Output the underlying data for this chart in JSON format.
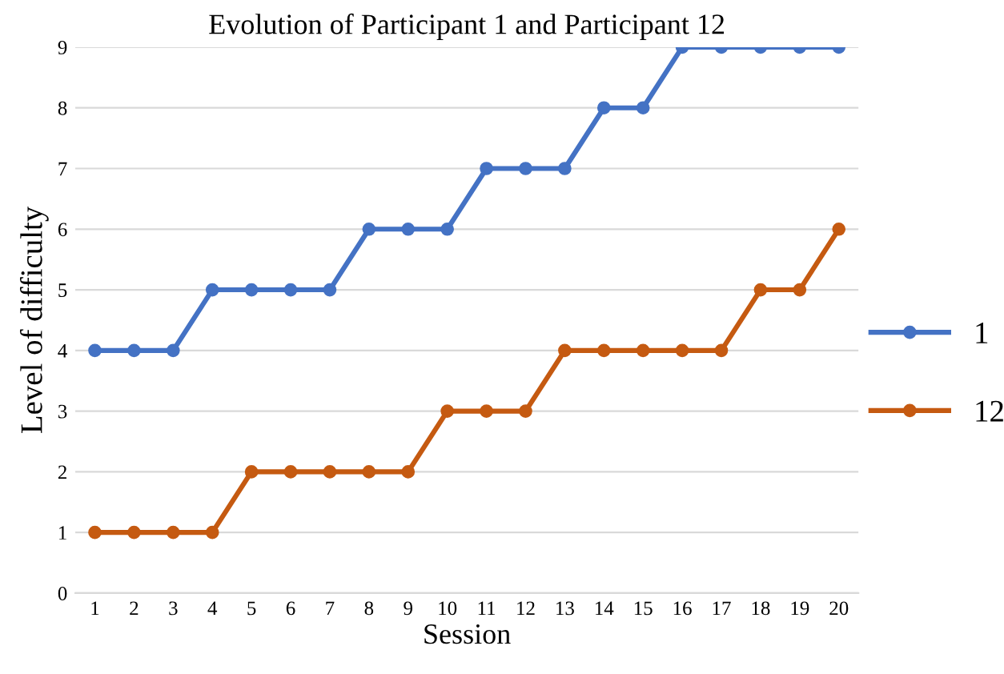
{
  "chart_data": {
    "type": "line",
    "title": "Evolution of Participant 1 and Participant 12",
    "xlabel": "Session",
    "ylabel": "Level of difficulty",
    "categories": [
      "1",
      "2",
      "3",
      "4",
      "5",
      "6",
      "7",
      "8",
      "9",
      "10",
      "11",
      "12",
      "13",
      "14",
      "15",
      "16",
      "17",
      "18",
      "19",
      "20"
    ],
    "series": [
      {
        "name": "1",
        "color": "#4472c4",
        "values": [
          4,
          4,
          4,
          5,
          5,
          5,
          5,
          6,
          6,
          6,
          7,
          7,
          7,
          8,
          8,
          9,
          9,
          9,
          9,
          9
        ]
      },
      {
        "name": "12",
        "color": "#c55a11",
        "values": [
          1,
          1,
          1,
          1,
          2,
          2,
          2,
          2,
          2,
          3,
          3,
          3,
          4,
          4,
          4,
          4,
          4,
          5,
          5,
          6
        ]
      }
    ],
    "ylim": [
      0,
      9
    ],
    "yticks": [
      0,
      1,
      2,
      3,
      4,
      5,
      6,
      7,
      8,
      9
    ],
    "grid": "y",
    "legend": "right",
    "marker": "circle",
    "line_style": "solid"
  }
}
